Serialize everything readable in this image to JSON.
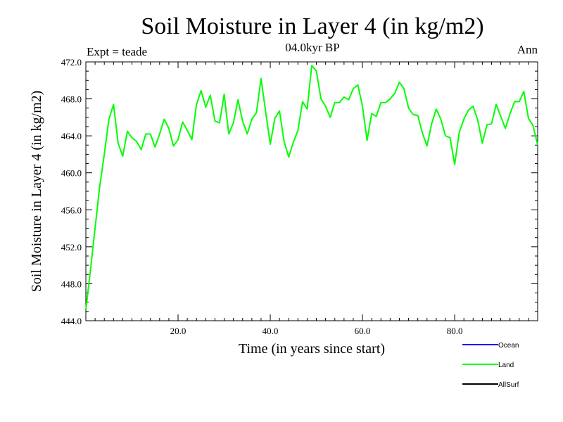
{
  "chart_data": {
    "type": "line",
    "title": "Soil Moisture in Layer 4 (in kg/m2)",
    "subtitle": "04.0kyr BP",
    "top_left_label": "Expt = teade",
    "top_right_label": "Ann",
    "xlabel": "Time (in years since start)",
    "ylabel": "Soil Moisture in Layer 4 (in kg/m2)",
    "xlim": [
      0,
      98
    ],
    "ylim": [
      444.0,
      472.0
    ],
    "x_ticks": [
      20,
      40,
      60,
      80
    ],
    "x_tick_labels": [
      "20.0",
      "40.0",
      "60.0",
      "80.0"
    ],
    "y_ticks": [
      444,
      448,
      452,
      456,
      460,
      464,
      468,
      472
    ],
    "y_tick_labels": [
      "444.0",
      "448.0",
      "452.0",
      "456.0",
      "460.0",
      "464.0",
      "468.0",
      "472.0"
    ],
    "legend": [
      {
        "name": "Ocean",
        "color": "#0000ff"
      },
      {
        "name": "Land",
        "color": "#00ff00"
      },
      {
        "name": "AllSurf",
        "color": "#000000"
      }
    ],
    "series": [
      {
        "name": "Land",
        "color": "#00ff00",
        "x": [
          0,
          1,
          2,
          3,
          4,
          5,
          6,
          7,
          8,
          9,
          10,
          11,
          12,
          13,
          14,
          15,
          16,
          17,
          18,
          19,
          20,
          21,
          22,
          23,
          24,
          25,
          26,
          27,
          28,
          29,
          30,
          31,
          32,
          33,
          34,
          35,
          36,
          37,
          38,
          39,
          40,
          41,
          42,
          43,
          44,
          45,
          46,
          47,
          48,
          49,
          50,
          51,
          52,
          53,
          54,
          55,
          56,
          57,
          58,
          59,
          60,
          61,
          62,
          63,
          64,
          65,
          66,
          67,
          68,
          69,
          70,
          71,
          72,
          73,
          74,
          75,
          76,
          77,
          78,
          79,
          80,
          81,
          82,
          83,
          84,
          85,
          86,
          87,
          88,
          89,
          90,
          91,
          92,
          93,
          94,
          95,
          96,
          97,
          98
        ],
        "values": [
          445.2,
          449.5,
          454.0,
          458.5,
          462.0,
          465.8,
          467.4,
          463.2,
          461.8,
          464.5,
          463.8,
          463.4,
          462.5,
          464.2,
          464.2,
          462.8,
          464.2,
          465.8,
          464.8,
          462.9,
          463.6,
          465.5,
          464.6,
          463.6,
          467.4,
          468.9,
          467.1,
          468.4,
          465.6,
          465.4,
          468.5,
          464.2,
          465.4,
          467.9,
          465.6,
          464.2,
          465.8,
          466.5,
          470.2,
          466.6,
          463.1,
          465.9,
          466.7,
          463.4,
          461.7,
          463.3,
          464.6,
          467.7,
          466.9,
          471.6,
          471.0,
          468.0,
          467.2,
          466.0,
          467.6,
          467.6,
          468.2,
          467.9,
          469.1,
          469.5,
          467.2,
          463.5,
          466.4,
          466.1,
          467.6,
          467.6,
          468.0,
          468.6,
          469.8,
          469.1,
          467.0,
          466.3,
          466.2,
          464.3,
          462.9,
          465.3,
          466.9,
          465.8,
          464.0,
          463.8,
          460.9,
          464.4,
          465.8,
          466.8,
          467.2,
          465.7,
          463.2,
          465.2,
          465.3,
          467.4,
          466.1,
          464.8,
          466.4,
          467.7,
          467.7,
          468.8,
          465.9,
          465.1,
          463.0
        ]
      }
    ]
  }
}
